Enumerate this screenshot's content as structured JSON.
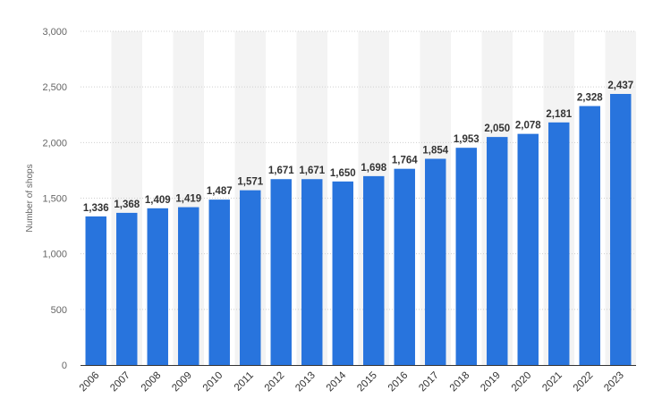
{
  "chart_data": {
    "type": "bar",
    "title": "",
    "xlabel": "",
    "ylabel": "Number of shops",
    "categories": [
      "2006",
      "2007",
      "2008",
      "2009",
      "2010",
      "2011",
      "2012",
      "2013",
      "2014",
      "2015",
      "2016",
      "2017",
      "2018",
      "2019",
      "2020",
      "2021",
      "2022",
      "2023"
    ],
    "values": [
      1336,
      1368,
      1409,
      1419,
      1487,
      1571,
      1671,
      1671,
      1650,
      1698,
      1764,
      1854,
      1953,
      2050,
      2078,
      2181,
      2328,
      2437
    ],
    "value_labels": [
      "1,336",
      "1,368",
      "1,409",
      "1,419",
      "1,487",
      "1,571",
      "1,671",
      "1,671",
      "1,650",
      "1,698",
      "1,764",
      "1,854",
      "1,953",
      "2,050",
      "2,078",
      "2,181",
      "2,328",
      "2,437"
    ],
    "ylim": [
      0,
      3000
    ],
    "yticks": [
      0,
      500,
      1000,
      1500,
      2000,
      2500,
      3000
    ],
    "ytick_labels": [
      "0",
      "500",
      "1,000",
      "1,500",
      "2,000",
      "2,500",
      "3,000"
    ],
    "grid": true,
    "legend": "none",
    "colors": {
      "bar": "#2874dd",
      "band": "#f3f3f3",
      "grid": "#cfcfcf",
      "axis": "#333333"
    }
  }
}
